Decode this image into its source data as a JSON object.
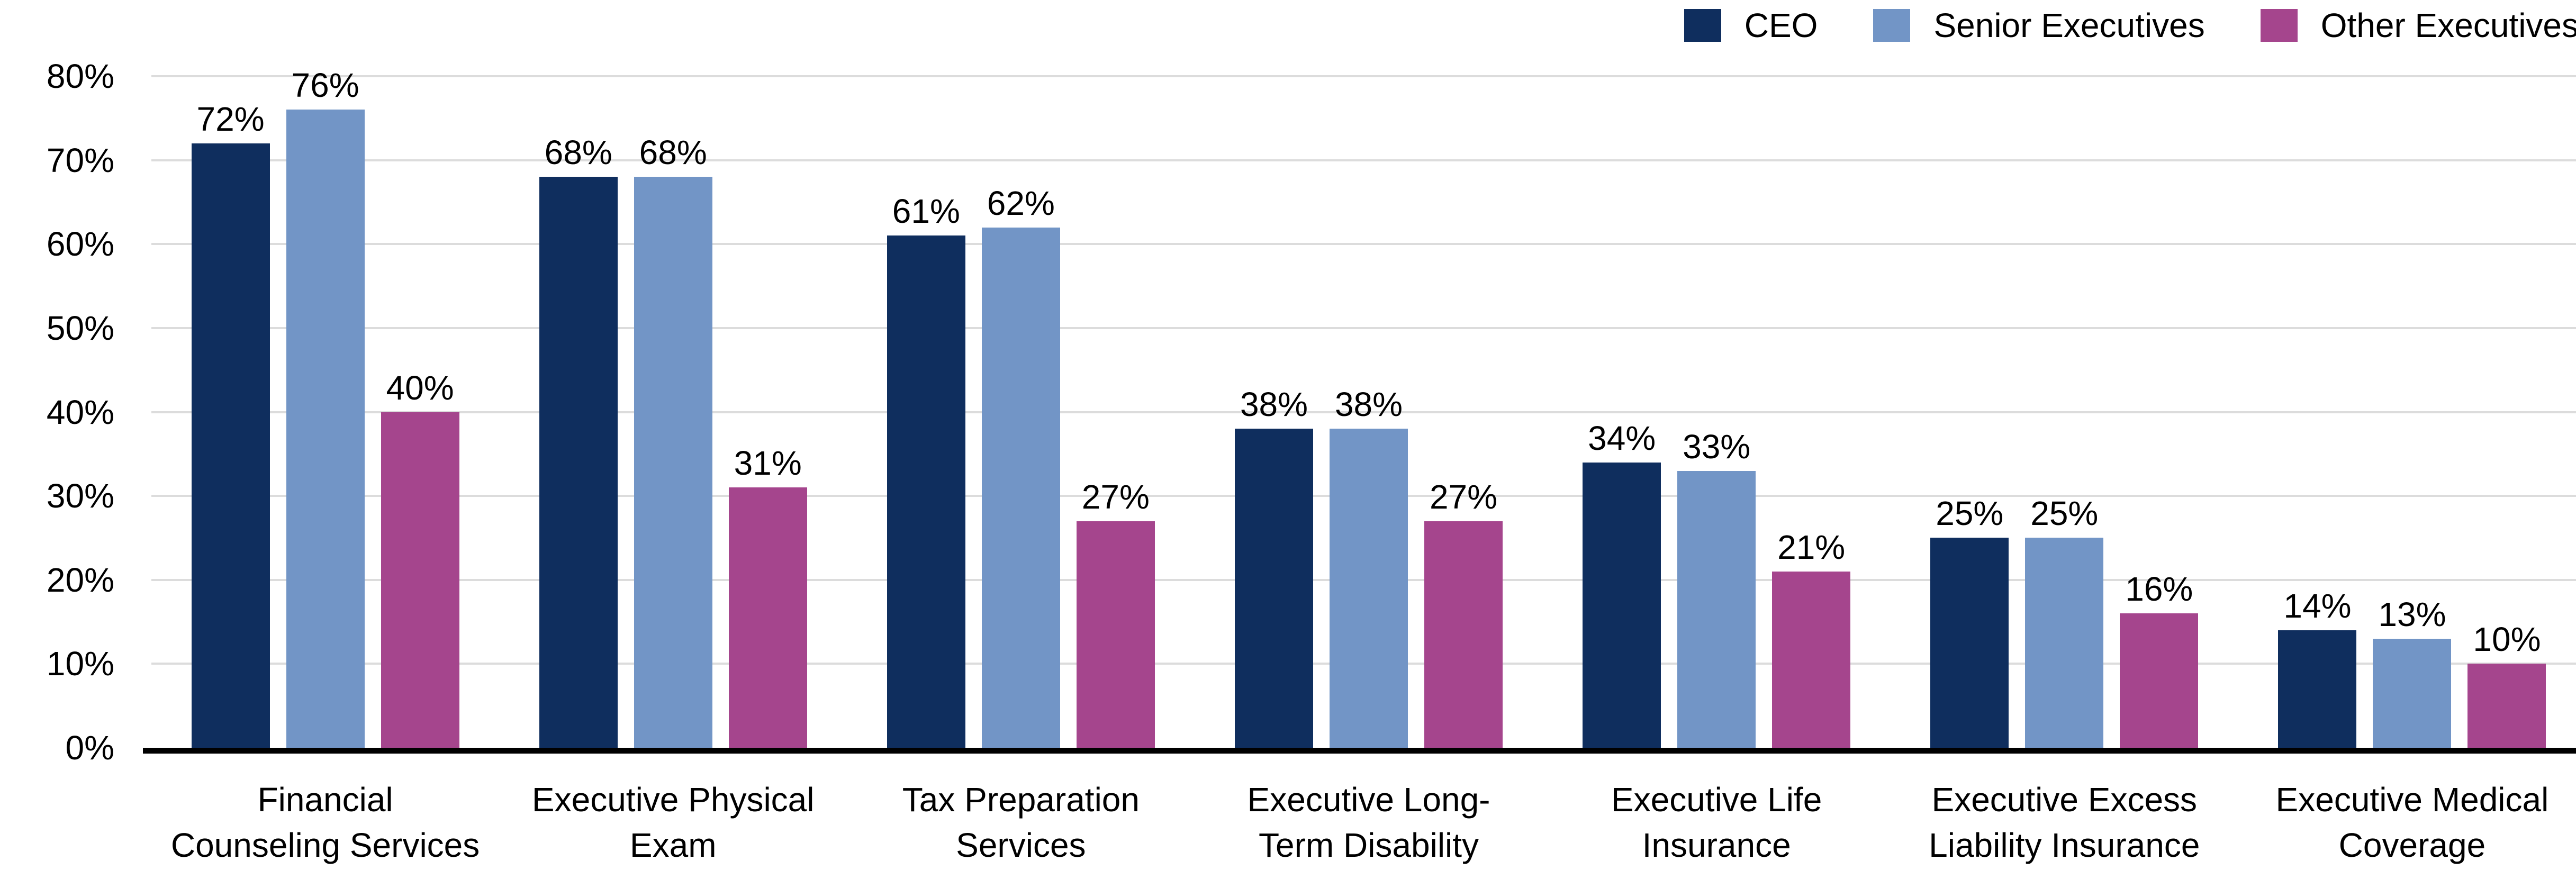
{
  "colors": {
    "background": "#ffffff",
    "grid": "#dcdcdc",
    "axis": "#000000",
    "text": "#000000"
  },
  "legend": {
    "items": [
      {
        "label": "CEO"
      },
      {
        "label": "Senior Executives"
      },
      {
        "label": "Other Executives"
      }
    ]
  },
  "chart_data": {
    "type": "bar",
    "title": "",
    "xlabel": "",
    "ylabel": "",
    "categories": [
      {
        "label": "Financial Counseling Services",
        "lines": [
          "Financial",
          "Counseling Services"
        ]
      },
      {
        "label": "Executive Physical Exam",
        "lines": [
          "Executive Physical",
          "Exam"
        ]
      },
      {
        "label": "Tax Preparation Services",
        "lines": [
          "Tax Preparation",
          "Services"
        ]
      },
      {
        "label": "Executive Long-Term Disability",
        "lines": [
          "Executive Long-",
          "Term Disability"
        ]
      },
      {
        "label": "Executive Life Insurance",
        "lines": [
          "Executive Life",
          "Insurance"
        ]
      },
      {
        "label": "Executive Excess Liability Insurance",
        "lines": [
          "Executive Excess",
          "Liability Insurance"
        ]
      },
      {
        "label": "Executive Medical Coverage",
        "lines": [
          "Executive Medical",
          "Coverage"
        ]
      }
    ],
    "series": [
      {
        "name": "CEO",
        "color": "#0f2e5e",
        "values": [
          72,
          68,
          61,
          38,
          34,
          25,
          14
        ]
      },
      {
        "name": "Senior Executives",
        "color": "#7295c6",
        "values": [
          76,
          68,
          62,
          38,
          33,
          25,
          13
        ]
      },
      {
        "name": "Other Executives",
        "color": "#a5458d",
        "values": [
          40,
          31,
          27,
          27,
          21,
          16,
          10
        ]
      }
    ],
    "data_labels": [
      "72%",
      "76%",
      "40%",
      "68%",
      "68%",
      "31%",
      "61%",
      "62%",
      "27%",
      "38%",
      "38%",
      "27%",
      "34%",
      "33%",
      "21%",
      "25%",
      "25%",
      "16%",
      "14%",
      "13%",
      "10%"
    ],
    "value_suffix": "%",
    "ylim": [
      0,
      80
    ],
    "ytick_step": 10,
    "ytick_labels": [
      "0%",
      "10%",
      "20%",
      "30%",
      "40%",
      "50%",
      "60%",
      "70%",
      "80%"
    ],
    "grid": true,
    "legend_position": "top-right"
  }
}
